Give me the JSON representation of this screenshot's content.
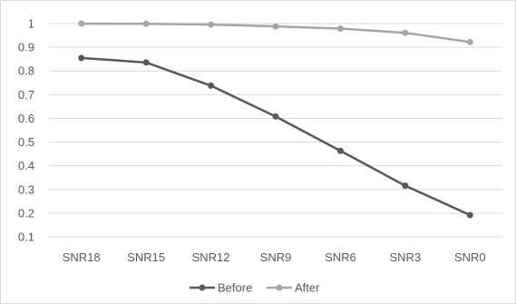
{
  "chart_data": {
    "type": "line",
    "categories": [
      "SNR18",
      "SNR15",
      "SNR12",
      "SNR9",
      "SNR6",
      "SNR3",
      "SNR0"
    ],
    "y_ticks": [
      "0.1",
      "0.2",
      "0.3",
      "0.4",
      "0.5",
      "0.6",
      "0.7",
      "0.8",
      "0.9",
      "1"
    ],
    "ylim": [
      0.1,
      1.0
    ],
    "grid": true,
    "legend_position": "bottom",
    "series": [
      {
        "name": "Before",
        "color": "#595959",
        "values": [
          0.855,
          0.836,
          0.738,
          0.608,
          0.463,
          0.316,
          0.192
        ]
      },
      {
        "name": "After",
        "color": "#a5a5a5",
        "values": [
          1.0,
          0.999,
          0.996,
          0.988,
          0.979,
          0.961,
          0.922
        ]
      }
    ]
  }
}
